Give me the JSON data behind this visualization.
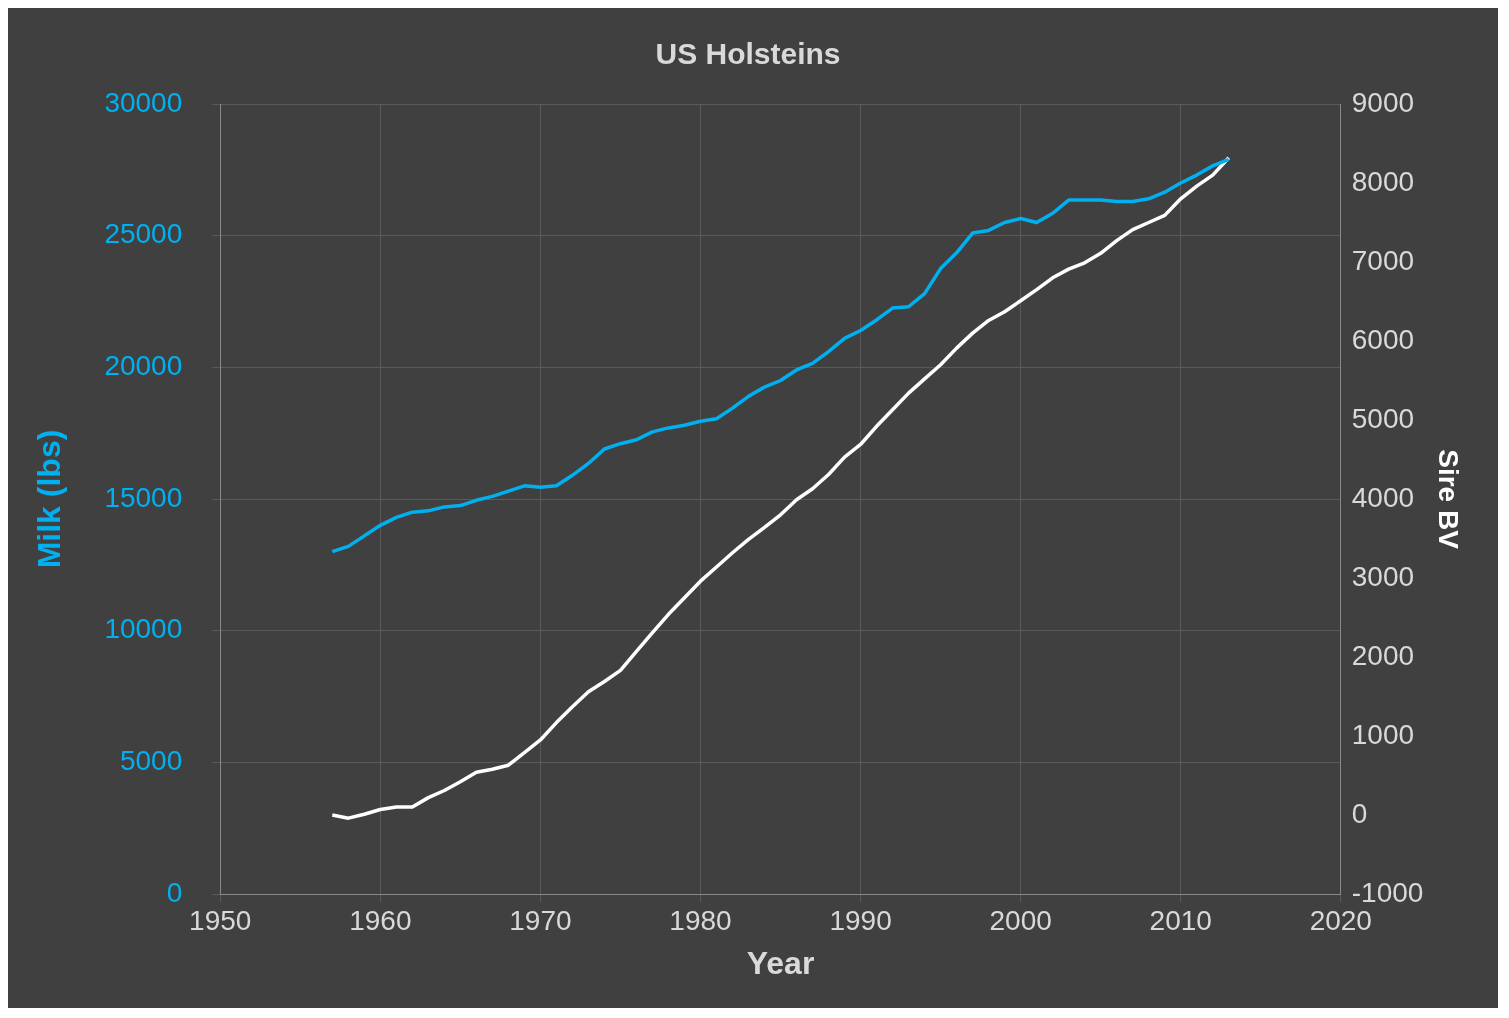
{
  "chart_data": {
    "type": "line",
    "title": "US Holsteins",
    "xlabel": "Year",
    "ylabel": "Milk (lbs)",
    "y2label": "Sire BV",
    "x": [
      1957,
      1958,
      1959,
      1960,
      1961,
      1962,
      1963,
      1964,
      1965,
      1966,
      1967,
      1968,
      1969,
      1970,
      1971,
      1972,
      1973,
      1974,
      1975,
      1976,
      1977,
      1978,
      1979,
      1980,
      1981,
      1982,
      1983,
      1984,
      1985,
      1986,
      1987,
      1988,
      1989,
      1990,
      1991,
      1992,
      1993,
      1994,
      1995,
      1996,
      1997,
      1998,
      1999,
      2000,
      2001,
      2002,
      2003,
      2004,
      2005,
      2006,
      2007,
      2008,
      2009,
      2010,
      2011,
      2012,
      2013
    ],
    "series": [
      {
        "color": "#00b0f0",
        "values": [
          13000,
          13200,
          13600,
          14000,
          14300,
          14500,
          14550,
          14700,
          14750,
          14950,
          15100,
          15300,
          15500,
          15450,
          15500,
          15900,
          16350,
          16900,
          17100,
          17250,
          17550,
          17700,
          17800,
          17950,
          18050,
          18450,
          18900,
          19250,
          19500,
          19900,
          20150,
          20600,
          21100,
          21400,
          21800,
          22250,
          22300,
          22800,
          23750,
          24350,
          25100,
          25200,
          25500,
          25650,
          25500,
          25850,
          26350,
          26350,
          26350,
          26300,
          26300,
          26400,
          26650,
          27000,
          27300,
          27650,
          27900
        ]
      },
      {
        "color": "#ffffff",
        "axis": "y2",
        "values": [
          0,
          -40,
          10,
          70,
          100,
          100,
          220,
          310,
          420,
          540,
          580,
          630,
          790,
          950,
          1170,
          1370,
          1560,
          1690,
          1830,
          2070,
          2310,
          2540,
          2750,
          2960,
          3140,
          3320,
          3490,
          3640,
          3800,
          3990,
          4130,
          4310,
          4530,
          4690,
          4920,
          5130,
          5340,
          5520,
          5700,
          5910,
          6100,
          6260,
          6370,
          6510,
          6650,
          6800,
          6910,
          6990,
          7110,
          7270,
          7410,
          7500,
          7590,
          7800,
          7960,
          8100,
          8320
        ]
      }
    ],
    "xlim": [
      1950,
      2020
    ],
    "xticks": [
      1950,
      1960,
      1970,
      1980,
      1990,
      2000,
      2010,
      2020
    ],
    "ylim": [
      0,
      30000
    ],
    "yticks": [
      0,
      5000,
      10000,
      15000,
      20000,
      25000,
      30000
    ],
    "y2lim": [
      -1000,
      9000
    ],
    "y2ticks": [
      -1000,
      0,
      1000,
      2000,
      3000,
      4000,
      5000,
      6000,
      7000,
      8000,
      9000
    ],
    "grid": true,
    "legend": false,
    "marker": "none",
    "line_style": "solid"
  }
}
